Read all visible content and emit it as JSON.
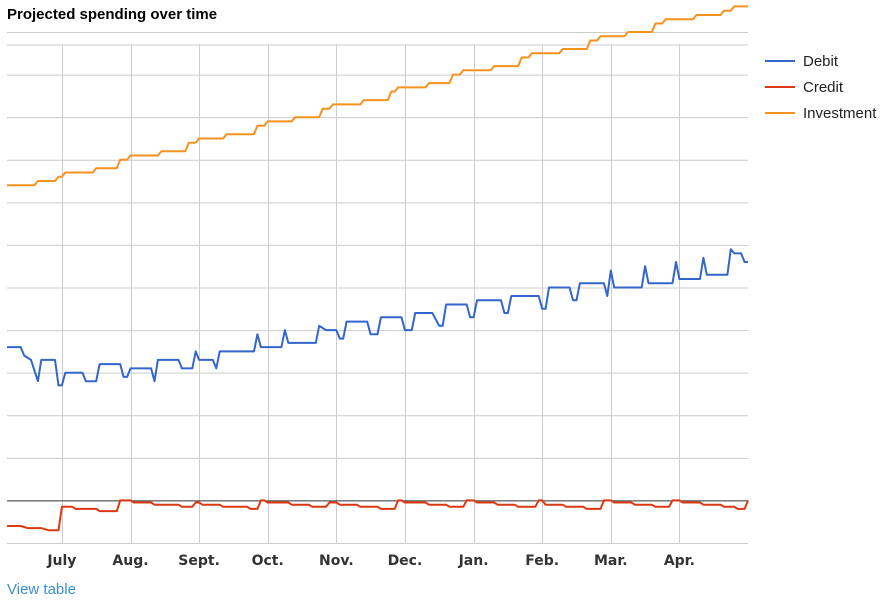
{
  "title": "Projected spending over time",
  "view_table_label": "View table",
  "chart_data": {
    "type": "line",
    "title": "Projected spending over time",
    "categories": [
      "July",
      "Aug.",
      "Sept.",
      "Oct.",
      "Nov.",
      "Dec.",
      "Jan.",
      "Feb.",
      "Mar.",
      "Apr."
    ],
    "x_domain": [
      -0.8,
      10.0
    ],
    "ylim": [
      -1,
      11
    ],
    "baseline": 0,
    "grid": true,
    "legend_position": "right",
    "series": [
      {
        "name": "Debit",
        "color": "#3366cc",
        "points": [
          [
            -0.8,
            3.6
          ],
          [
            -0.6,
            3.6
          ],
          [
            -0.55,
            3.4
          ],
          [
            -0.45,
            3.3
          ],
          [
            -0.35,
            2.8
          ],
          [
            -0.3,
            3.3
          ],
          [
            -0.1,
            3.3
          ],
          [
            -0.05,
            2.7
          ],
          [
            0.0,
            2.7
          ],
          [
            0.05,
            3.0
          ],
          [
            0.3,
            3.0
          ],
          [
            0.35,
            2.8
          ],
          [
            0.5,
            2.8
          ],
          [
            0.55,
            3.2
          ],
          [
            0.85,
            3.2
          ],
          [
            0.9,
            2.9
          ],
          [
            0.95,
            2.9
          ],
          [
            1.0,
            3.1
          ],
          [
            1.3,
            3.1
          ],
          [
            1.35,
            2.8
          ],
          [
            1.4,
            3.3
          ],
          [
            1.7,
            3.3
          ],
          [
            1.75,
            3.1
          ],
          [
            1.9,
            3.1
          ],
          [
            1.95,
            3.5
          ],
          [
            2.0,
            3.3
          ],
          [
            2.2,
            3.3
          ],
          [
            2.25,
            3.1
          ],
          [
            2.3,
            3.5
          ],
          [
            2.8,
            3.5
          ],
          [
            2.85,
            3.9
          ],
          [
            2.9,
            3.6
          ],
          [
            3.2,
            3.6
          ],
          [
            3.25,
            4.0
          ],
          [
            3.3,
            3.7
          ],
          [
            3.7,
            3.7
          ],
          [
            3.75,
            4.1
          ],
          [
            3.85,
            4.0
          ],
          [
            4.0,
            4.0
          ],
          [
            4.05,
            3.8
          ],
          [
            4.1,
            3.8
          ],
          [
            4.15,
            4.2
          ],
          [
            4.45,
            4.2
          ],
          [
            4.5,
            3.9
          ],
          [
            4.6,
            3.9
          ],
          [
            4.65,
            4.3
          ],
          [
            4.95,
            4.3
          ],
          [
            5.0,
            4.0
          ],
          [
            5.1,
            4.0
          ],
          [
            5.15,
            4.4
          ],
          [
            5.4,
            4.4
          ],
          [
            5.5,
            4.1
          ],
          [
            5.55,
            4.1
          ],
          [
            5.6,
            4.6
          ],
          [
            5.9,
            4.6
          ],
          [
            5.95,
            4.3
          ],
          [
            6.0,
            4.3
          ],
          [
            6.05,
            4.7
          ],
          [
            6.4,
            4.7
          ],
          [
            6.45,
            4.4
          ],
          [
            6.5,
            4.4
          ],
          [
            6.55,
            4.8
          ],
          [
            6.95,
            4.8
          ],
          [
            7.0,
            4.5
          ],
          [
            7.05,
            4.5
          ],
          [
            7.1,
            5.0
          ],
          [
            7.4,
            5.0
          ],
          [
            7.45,
            4.7
          ],
          [
            7.5,
            4.7
          ],
          [
            7.55,
            5.1
          ],
          [
            7.9,
            5.1
          ],
          [
            7.95,
            4.8
          ],
          [
            8.0,
            5.4
          ],
          [
            8.05,
            5.0
          ],
          [
            8.45,
            5.0
          ],
          [
            8.5,
            5.5
          ],
          [
            8.55,
            5.1
          ],
          [
            8.9,
            5.1
          ],
          [
            8.95,
            5.6
          ],
          [
            9.0,
            5.2
          ],
          [
            9.3,
            5.2
          ],
          [
            9.35,
            5.7
          ],
          [
            9.4,
            5.3
          ],
          [
            9.7,
            5.3
          ],
          [
            9.75,
            5.9
          ],
          [
            9.8,
            5.8
          ],
          [
            9.9,
            5.8
          ],
          [
            9.95,
            5.6
          ],
          [
            10.0,
            5.6
          ]
        ]
      },
      {
        "name": "Credit",
        "color": "#dc3912",
        "points": [
          [
            -0.8,
            -0.6
          ],
          [
            -0.6,
            -0.6
          ],
          [
            -0.5,
            -0.65
          ],
          [
            -0.3,
            -0.65
          ],
          [
            -0.2,
            -0.7
          ],
          [
            -0.05,
            -0.7
          ],
          [
            0.0,
            -0.15
          ],
          [
            0.15,
            -0.15
          ],
          [
            0.2,
            -0.2
          ],
          [
            0.5,
            -0.2
          ],
          [
            0.55,
            -0.25
          ],
          [
            0.8,
            -0.25
          ],
          [
            0.85,
            0.0
          ],
          [
            1.0,
            0.0
          ],
          [
            1.05,
            -0.05
          ],
          [
            1.3,
            -0.05
          ],
          [
            1.35,
            -0.1
          ],
          [
            1.7,
            -0.1
          ],
          [
            1.75,
            -0.15
          ],
          [
            1.9,
            -0.15
          ],
          [
            1.95,
            -0.05
          ],
          [
            2.0,
            -0.05
          ],
          [
            2.05,
            -0.1
          ],
          [
            2.3,
            -0.1
          ],
          [
            2.35,
            -0.15
          ],
          [
            2.7,
            -0.15
          ],
          [
            2.75,
            -0.2
          ],
          [
            2.85,
            -0.2
          ],
          [
            2.9,
            0.0
          ],
          [
            2.95,
            0.0
          ],
          [
            3.0,
            -0.05
          ],
          [
            3.3,
            -0.05
          ],
          [
            3.35,
            -0.1
          ],
          [
            3.6,
            -0.1
          ],
          [
            3.65,
            -0.15
          ],
          [
            3.85,
            -0.15
          ],
          [
            3.9,
            -0.05
          ],
          [
            4.0,
            -0.05
          ],
          [
            4.05,
            -0.1
          ],
          [
            4.3,
            -0.1
          ],
          [
            4.35,
            -0.15
          ],
          [
            4.6,
            -0.15
          ],
          [
            4.65,
            -0.2
          ],
          [
            4.85,
            -0.2
          ],
          [
            4.9,
            0.0
          ],
          [
            4.95,
            0.0
          ],
          [
            5.0,
            -0.05
          ],
          [
            5.3,
            -0.05
          ],
          [
            5.35,
            -0.1
          ],
          [
            5.6,
            -0.1
          ],
          [
            5.65,
            -0.15
          ],
          [
            5.85,
            -0.15
          ],
          [
            5.9,
            0.0
          ],
          [
            6.0,
            0.0
          ],
          [
            6.05,
            -0.05
          ],
          [
            6.3,
            -0.05
          ],
          [
            6.35,
            -0.1
          ],
          [
            6.6,
            -0.1
          ],
          [
            6.65,
            -0.15
          ],
          [
            6.9,
            -0.15
          ],
          [
            6.95,
            0.0
          ],
          [
            7.0,
            0.0
          ],
          [
            7.05,
            -0.1
          ],
          [
            7.3,
            -0.1
          ],
          [
            7.35,
            -0.15
          ],
          [
            7.6,
            -0.15
          ],
          [
            7.65,
            -0.2
          ],
          [
            7.85,
            -0.2
          ],
          [
            7.9,
            0.0
          ],
          [
            8.0,
            0.0
          ],
          [
            8.05,
            -0.05
          ],
          [
            8.3,
            -0.05
          ],
          [
            8.35,
            -0.1
          ],
          [
            8.6,
            -0.1
          ],
          [
            8.65,
            -0.15
          ],
          [
            8.85,
            -0.15
          ],
          [
            8.9,
            0.0
          ],
          [
            9.0,
            0.0
          ],
          [
            9.05,
            -0.05
          ],
          [
            9.3,
            -0.05
          ],
          [
            9.35,
            -0.1
          ],
          [
            9.6,
            -0.1
          ],
          [
            9.65,
            -0.15
          ],
          [
            9.8,
            -0.15
          ],
          [
            9.85,
            -0.2
          ],
          [
            9.95,
            -0.2
          ],
          [
            10.0,
            0.0
          ]
        ]
      },
      {
        "name": "Investment",
        "color": "#f6921e",
        "points": [
          [
            -0.8,
            7.4
          ],
          [
            -0.4,
            7.4
          ],
          [
            -0.35,
            7.5
          ],
          [
            -0.1,
            7.5
          ],
          [
            -0.05,
            7.6
          ],
          [
            0.0,
            7.6
          ],
          [
            0.05,
            7.7
          ],
          [
            0.45,
            7.7
          ],
          [
            0.5,
            7.8
          ],
          [
            0.8,
            7.8
          ],
          [
            0.85,
            8.0
          ],
          [
            0.95,
            8.0
          ],
          [
            1.0,
            8.1
          ],
          [
            1.4,
            8.1
          ],
          [
            1.45,
            8.2
          ],
          [
            1.8,
            8.2
          ],
          [
            1.85,
            8.4
          ],
          [
            1.95,
            8.4
          ],
          [
            2.0,
            8.5
          ],
          [
            2.35,
            8.5
          ],
          [
            2.4,
            8.6
          ],
          [
            2.8,
            8.6
          ],
          [
            2.85,
            8.8
          ],
          [
            2.95,
            8.8
          ],
          [
            3.0,
            8.9
          ],
          [
            3.35,
            8.9
          ],
          [
            3.4,
            9.0
          ],
          [
            3.75,
            9.0
          ],
          [
            3.8,
            9.2
          ],
          [
            3.9,
            9.2
          ],
          [
            3.95,
            9.3
          ],
          [
            4.35,
            9.3
          ],
          [
            4.4,
            9.4
          ],
          [
            4.75,
            9.4
          ],
          [
            4.8,
            9.6
          ],
          [
            4.85,
            9.6
          ],
          [
            4.9,
            9.7
          ],
          [
            5.3,
            9.7
          ],
          [
            5.35,
            9.8
          ],
          [
            5.65,
            9.8
          ],
          [
            5.7,
            10.0
          ],
          [
            5.8,
            10.0
          ],
          [
            5.85,
            10.1
          ],
          [
            6.25,
            10.1
          ],
          [
            6.3,
            10.2
          ],
          [
            6.65,
            10.2
          ],
          [
            6.7,
            10.4
          ],
          [
            6.8,
            10.4
          ],
          [
            6.85,
            10.5
          ],
          [
            7.25,
            10.5
          ],
          [
            7.3,
            10.6
          ],
          [
            7.65,
            10.6
          ],
          [
            7.7,
            10.8
          ],
          [
            7.8,
            10.8
          ],
          [
            7.85,
            10.9
          ],
          [
            8.2,
            10.9
          ],
          [
            8.25,
            11.0
          ],
          [
            8.6,
            11.0
          ],
          [
            8.65,
            11.2
          ],
          [
            8.75,
            11.2
          ],
          [
            8.8,
            11.3
          ],
          [
            9.2,
            11.3
          ],
          [
            9.25,
            11.4
          ],
          [
            9.6,
            11.4
          ],
          [
            9.65,
            11.5
          ],
          [
            9.75,
            11.5
          ],
          [
            9.8,
            11.6
          ],
          [
            10.0,
            11.6
          ]
        ]
      }
    ]
  }
}
